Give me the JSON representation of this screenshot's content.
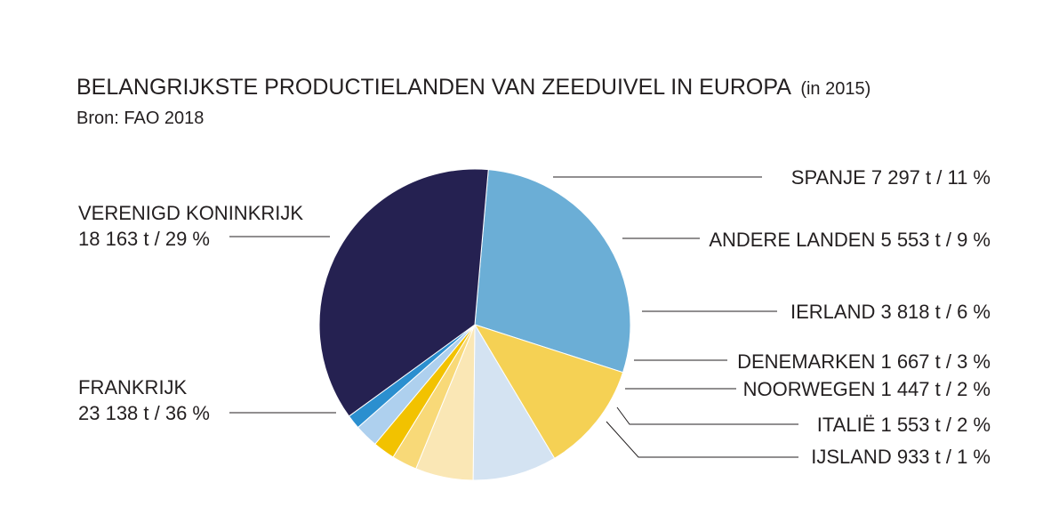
{
  "title": "BELANGRIJKSTE PRODUCTIELANDEN VAN ZEEDUIVEL IN EUROPA",
  "title_suffix": "(in 2015)",
  "source": "Bron: FAO 2018",
  "chart_data": {
    "type": "pie",
    "unit": "t",
    "slices": [
      {
        "name": "VERENIGD KONINKRIJK",
        "value": 18163,
        "value_label": "18 163 t / 29 %",
        "color": "#6baed6"
      },
      {
        "name": "SPANJE",
        "value": 7297,
        "value_label": "7 297 t / 11 %",
        "color": "#f5d154"
      },
      {
        "name": "ANDERE LANDEN",
        "value": 5553,
        "value_label": "5 553 t / 9 %",
        "color": "#d4e3f2"
      },
      {
        "name": "IERLAND",
        "value": 3818,
        "value_label": "3 818 t / 6 %",
        "color": "#fae7b5"
      },
      {
        "name": "DENEMARKEN",
        "value": 1667,
        "value_label": "1 667 t / 3 %",
        "color": "#f8d978"
      },
      {
        "name": "NOORWEGEN",
        "value": 1447,
        "value_label": "1 447 t / 2 %",
        "color": "#f2c200"
      },
      {
        "name": "ITALIË",
        "value": 1553,
        "value_label": "1 553 t / 2 %",
        "color": "#aed0ee"
      },
      {
        "name": "IJSLAND",
        "value": 933,
        "value_label": "933 t / 1 %",
        "color": "#2b8fcf"
      },
      {
        "name": "FRANKRIJK",
        "value": 23138,
        "value_label": "23 138 t / 36 %",
        "color": "#252151"
      }
    ],
    "start_angle_deg": 5,
    "direction": "clockwise"
  }
}
